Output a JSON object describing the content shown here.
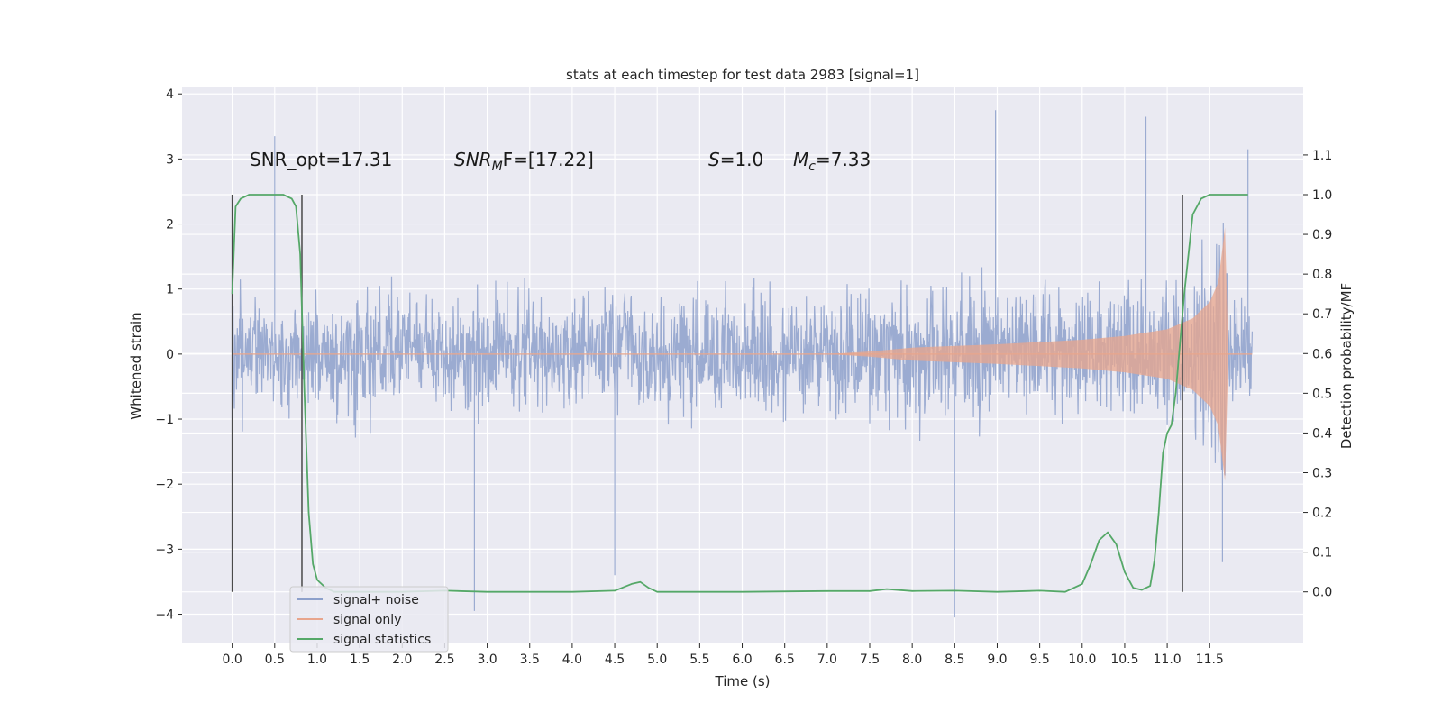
{
  "chart_data": {
    "type": "line",
    "title": "stats at each timestep for test data 2983 [signal=1]",
    "xlabel": "Time (s)",
    "ylabel": "Whitened strain",
    "y2label": "Detection probability/MF",
    "xlim": [
      -0.59,
      12.6
    ],
    "ylim": [
      -4.45,
      4.1
    ],
    "y2lim": [
      -0.13,
      1.27
    ],
    "x_ticks": [
      0.0,
      0.5,
      1.0,
      1.5,
      2.0,
      2.5,
      3.0,
      3.5,
      4.0,
      4.5,
      5.0,
      5.5,
      6.0,
      6.5,
      7.0,
      7.5,
      8.0,
      8.5,
      9.0,
      9.5,
      10.0,
      10.5,
      11.0,
      11.5
    ],
    "x_tick_labels": [
      "0.0",
      "0.5",
      "1.0",
      "1.5",
      "2.0",
      "2.5",
      "3.0",
      "3.5",
      "4.0",
      "4.5",
      "5.0",
      "5.5",
      "6.0",
      "6.5",
      "7.0",
      "7.5",
      "8.0",
      "8.5",
      "9.0",
      "9.5",
      "10.0",
      "10.5",
      "11.0",
      "11.5"
    ],
    "y_ticks": [
      -4,
      -3,
      -2,
      -1,
      0,
      1,
      2,
      3,
      4
    ],
    "y_tick_labels": [
      "−4",
      "−3",
      "−2",
      "−1",
      "0",
      "1",
      "2",
      "3",
      "4"
    ],
    "y2_ticks": [
      0.0,
      0.1,
      0.2,
      0.3,
      0.4,
      0.5,
      0.6,
      0.7,
      0.8,
      0.9,
      1.0,
      1.1
    ],
    "y2_tick_labels": [
      "0.0",
      "0.1",
      "0.2",
      "0.3",
      "0.4",
      "0.5",
      "0.6",
      "0.7",
      "0.8",
      "0.9",
      "1.0",
      "1.1"
    ],
    "grid": true,
    "legend_position": "lower-left",
    "series": [
      {
        "name": "signal+ noise",
        "color": "#8da0cb",
        "kind": "noisy strain, approx. ±1.7 envelope with spikes to ±4, t = 0 to 12 s",
        "spikes": [
          [
            0.5,
            3.35
          ],
          [
            2.85,
            -3.95
          ],
          [
            4.5,
            -3.4
          ],
          [
            8.5,
            -4.05
          ],
          [
            8.98,
            3.75
          ],
          [
            10.75,
            3.65
          ],
          [
            11.65,
            -3.2
          ],
          [
            11.95,
            3.15
          ]
        ]
      },
      {
        "name": "signal only",
        "color": "#e8a58c",
        "kind": "chirp, amplitude grows from ~0 at t=7 s to ~2.0 at t=11.7 s, then stops",
        "envelope": [
          [
            0.0,
            0.0
          ],
          [
            7.0,
            0.0
          ],
          [
            7.5,
            0.04
          ],
          [
            8.0,
            0.1
          ],
          [
            9.0,
            0.15
          ],
          [
            10.0,
            0.22
          ],
          [
            10.5,
            0.28
          ],
          [
            11.0,
            0.38
          ],
          [
            11.3,
            0.55
          ],
          [
            11.5,
            0.8
          ],
          [
            11.6,
            1.1
          ],
          [
            11.68,
            1.95
          ],
          [
            11.72,
            0.0
          ],
          [
            12.0,
            0.0
          ]
        ]
      },
      {
        "name": "signal statistics",
        "color": "#55a868",
        "axis": "right",
        "x": [
          0.0,
          0.04,
          0.1,
          0.2,
          0.35,
          0.6,
          0.7,
          0.75,
          0.8,
          0.85,
          0.9,
          0.95,
          1.0,
          1.05,
          1.1,
          1.2,
          2.0,
          2.5,
          3.0,
          4.0,
          4.5,
          4.7,
          4.8,
          4.9,
          5.0,
          5.5,
          6.0,
          7.0,
          7.5,
          7.7,
          8.0,
          8.5,
          9.0,
          9.5,
          9.8,
          10.0,
          10.1,
          10.2,
          10.3,
          10.4,
          10.5,
          10.6,
          10.7,
          10.8,
          10.85,
          10.9,
          10.95,
          11.0,
          11.05,
          11.1,
          11.2,
          11.3,
          11.4,
          11.5,
          11.7,
          11.95
        ],
        "y": [
          0.75,
          0.97,
          0.99,
          1.0,
          1.0,
          1.0,
          0.99,
          0.97,
          0.85,
          0.5,
          0.2,
          0.07,
          0.03,
          0.02,
          0.01,
          0.0,
          0.0,
          0.003,
          0.0,
          0.0,
          0.003,
          0.02,
          0.025,
          0.01,
          0.0,
          0.0,
          0.0,
          0.002,
          0.002,
          0.007,
          0.002,
          0.003,
          0.0,
          0.003,
          0.0,
          0.02,
          0.07,
          0.13,
          0.15,
          0.12,
          0.05,
          0.01,
          0.005,
          0.015,
          0.08,
          0.2,
          0.35,
          0.4,
          0.42,
          0.5,
          0.75,
          0.95,
          0.99,
          1.0,
          1.0,
          1.0
        ]
      }
    ],
    "vertical_markers": [
      0.0,
      0.82,
      11.18
    ],
    "annotations": {
      "snr_opt": "SNR_opt=17.31",
      "snr_mf_base": "SNR",
      "snr_mf_sub": "M",
      "snr_mf_tail": "F=[17.22]",
      "s_label": "S",
      "s_value": "=1.0",
      "mc_label": "M",
      "mc_sub": "c",
      "mc_value": "=7.33"
    }
  }
}
